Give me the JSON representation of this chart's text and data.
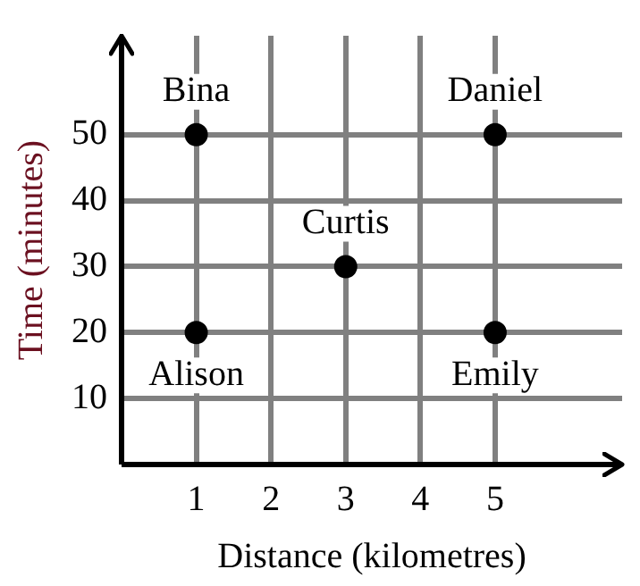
{
  "chart_data": {
    "type": "scatter",
    "xlabel": "Distance (kilometres)",
    "ylabel": "Time (minutes)",
    "x": [
      1,
      5,
      3,
      1,
      5
    ],
    "values": [
      50,
      50,
      30,
      20,
      20
    ],
    "color": "#000000",
    "marker": "circle",
    "xlim": [
      0,
      6.7
    ],
    "ylim": [
      0,
      65
    ],
    "xticks": [
      1,
      2,
      3,
      4,
      5
    ],
    "yticks": [
      10,
      20,
      30,
      40,
      50
    ],
    "grid": true,
    "annotations": [
      {
        "text": "Bina",
        "x": 1,
        "y": 50
      },
      {
        "text": "Daniel",
        "x": 5,
        "y": 50
      },
      {
        "text": "Curtis",
        "x": 3,
        "y": 30
      },
      {
        "text": "Alison",
        "x": 1,
        "y": 20
      },
      {
        "text": "Emily",
        "x": 5,
        "y": 20
      }
    ]
  }
}
